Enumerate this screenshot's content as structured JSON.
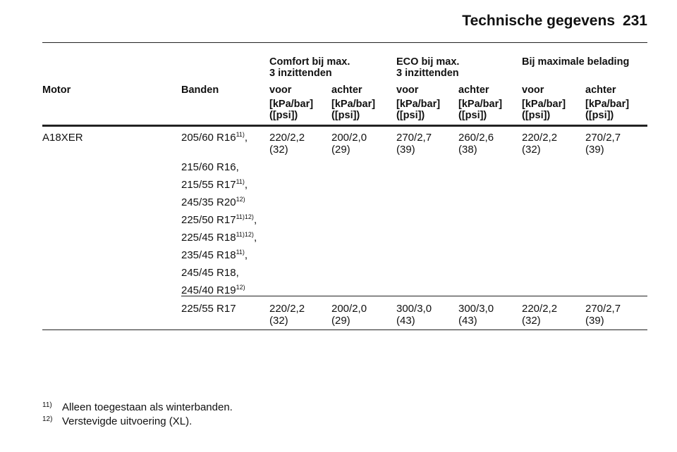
{
  "header": {
    "title": "Technische gegevens",
    "page": "231"
  },
  "table": {
    "groups": [
      {
        "label": [
          "Comfort bij max.",
          "3 inzittenden"
        ]
      },
      {
        "label": [
          "ECO bij max.",
          "3 inzittenden"
        ]
      },
      {
        "label": [
          "Bij maximale belading"
        ]
      }
    ],
    "columns": [
      "Motor",
      "Banden",
      "voor",
      "achter",
      "voor",
      "achter",
      "voor",
      "achter"
    ],
    "unit": [
      "[kPa/bar]",
      "([psi])"
    ],
    "rows": [
      {
        "motor": "A18XER",
        "tyres": [
          {
            "size": "205/60 R16",
            "note": "11)",
            "suffix": ","
          },
          {
            "size": "215/60 R16,"
          },
          {
            "size": "215/55 R17",
            "note": "11)",
            "suffix": ","
          },
          {
            "size": "245/35 R20",
            "note": "12)"
          },
          {
            "size": "225/50 R17",
            "note": "11)12)",
            "suffix": ","
          },
          {
            "size": "225/45 R18",
            "note": "11)12)",
            "suffix": ","
          },
          {
            "size": "235/45 R18",
            "note": "11)",
            "suffix": ","
          },
          {
            "size": "245/45 R18,"
          },
          {
            "size": "245/40 R19",
            "note": "12)"
          }
        ],
        "values": [
          [
            "220/2,2",
            "(32)"
          ],
          [
            "200/2,0",
            "(29)"
          ],
          [
            "270/2,7",
            "(39)"
          ],
          [
            "260/2,6",
            "(38)"
          ],
          [
            "220/2,2",
            "(32)"
          ],
          [
            "270/2,7",
            "(39)"
          ]
        ]
      },
      {
        "tyres": [
          {
            "size": "225/55 R17"
          }
        ],
        "values": [
          [
            "220/2,2",
            "(32)"
          ],
          [
            "200/2,0",
            "(29)"
          ],
          [
            "300/3,0",
            "(43)"
          ],
          [
            "300/3,0",
            "(43)"
          ],
          [
            "220/2,2",
            "(32)"
          ],
          [
            "270/2,7",
            "(39)"
          ]
        ]
      }
    ]
  },
  "footnotes": [
    {
      "mark": "11)",
      "text": "Alleen toegestaan als winterbanden."
    },
    {
      "mark": "12)",
      "text": "Verstevigde uitvoering (XL)."
    }
  ]
}
